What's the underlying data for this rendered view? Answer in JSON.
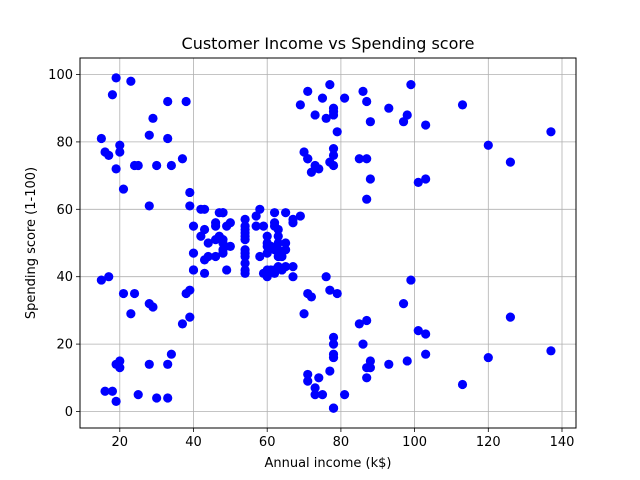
{
  "chart_data": {
    "type": "scatter",
    "title": "Customer Income vs Spending score",
    "xlabel": "Annual income (k$)",
    "ylabel": "Spending score (1-100)",
    "xlim": [
      9.2,
      143.8
    ],
    "ylim": [
      -4.9,
      104.9
    ],
    "xticks": [
      20,
      40,
      60,
      80,
      100,
      120,
      140
    ],
    "yticks": [
      0,
      20,
      40,
      60,
      80,
      100
    ],
    "grid": true,
    "marker_color": "#0000ff",
    "points": [
      [
        15,
        39
      ],
      [
        15,
        81
      ],
      [
        16,
        6
      ],
      [
        16,
        77
      ],
      [
        17,
        40
      ],
      [
        17,
        76
      ],
      [
        18,
        6
      ],
      [
        18,
        94
      ],
      [
        19,
        3
      ],
      [
        19,
        72
      ],
      [
        19,
        14
      ],
      [
        19,
        99
      ],
      [
        20,
        15
      ],
      [
        20,
        77
      ],
      [
        20,
        13
      ],
      [
        20,
        79
      ],
      [
        21,
        35
      ],
      [
        21,
        66
      ],
      [
        23,
        29
      ],
      [
        23,
        98
      ],
      [
        24,
        35
      ],
      [
        24,
        73
      ],
      [
        25,
        5
      ],
      [
        25,
        73
      ],
      [
        28,
        14
      ],
      [
        28,
        82
      ],
      [
        28,
        32
      ],
      [
        28,
        61
      ],
      [
        29,
        31
      ],
      [
        29,
        87
      ],
      [
        30,
        4
      ],
      [
        30,
        73
      ],
      [
        33,
        4
      ],
      [
        33,
        92
      ],
      [
        33,
        14
      ],
      [
        33,
        81
      ],
      [
        34,
        17
      ],
      [
        34,
        73
      ],
      [
        37,
        26
      ],
      [
        37,
        75
      ],
      [
        38,
        35
      ],
      [
        38,
        92
      ],
      [
        39,
        36
      ],
      [
        39,
        61
      ],
      [
        39,
        28
      ],
      [
        39,
        65
      ],
      [
        40,
        55
      ],
      [
        40,
        47
      ],
      [
        40,
        42
      ],
      [
        40,
        42
      ],
      [
        42,
        52
      ],
      [
        42,
        60
      ],
      [
        43,
        54
      ],
      [
        43,
        60
      ],
      [
        43,
        45
      ],
      [
        43,
        41
      ],
      [
        44,
        50
      ],
      [
        44,
        46
      ],
      [
        46,
        51
      ],
      [
        46,
        46
      ],
      [
        46,
        56
      ],
      [
        46,
        55
      ],
      [
        47,
        52
      ],
      [
        47,
        59
      ],
      [
        48,
        51
      ],
      [
        48,
        59
      ],
      [
        48,
        50
      ],
      [
        48,
        48
      ],
      [
        48,
        59
      ],
      [
        48,
        47
      ],
      [
        49,
        55
      ],
      [
        49,
        42
      ],
      [
        50,
        49
      ],
      [
        50,
        56
      ],
      [
        54,
        47
      ],
      [
        54,
        54
      ],
      [
        54,
        53
      ],
      [
        54,
        48
      ],
      [
        54,
        52
      ],
      [
        54,
        42
      ],
      [
        54,
        51
      ],
      [
        54,
        55
      ],
      [
        54,
        41
      ],
      [
        54,
        44
      ],
      [
        54,
        57
      ],
      [
        54,
        46
      ],
      [
        57,
        58
      ],
      [
        57,
        55
      ],
      [
        58,
        60
      ],
      [
        58,
        46
      ],
      [
        59,
        55
      ],
      [
        59,
        41
      ],
      [
        60,
        49
      ],
      [
        60,
        40
      ],
      [
        60,
        42
      ],
      [
        60,
        52
      ],
      [
        60,
        47
      ],
      [
        60,
        50
      ],
      [
        61,
        42
      ],
      [
        61,
        49
      ],
      [
        62,
        41
      ],
      [
        62,
        48
      ],
      [
        62,
        59
      ],
      [
        62,
        55
      ],
      [
        62,
        56
      ],
      [
        62,
        42
      ],
      [
        63,
        50
      ],
      [
        63,
        46
      ],
      [
        63,
        43
      ],
      [
        63,
        48
      ],
      [
        63,
        52
      ],
      [
        63,
        54
      ],
      [
        64,
        42
      ],
      [
        64,
        46
      ],
      [
        65,
        48
      ],
      [
        65,
        50
      ],
      [
        65,
        43
      ],
      [
        65,
        59
      ],
      [
        67,
        43
      ],
      [
        67,
        57
      ],
      [
        67,
        56
      ],
      [
        67,
        40
      ],
      [
        69,
        58
      ],
      [
        69,
        91
      ],
      [
        70,
        29
      ],
      [
        70,
        77
      ],
      [
        71,
        35
      ],
      [
        71,
        95
      ],
      [
        71,
        11
      ],
      [
        71,
        75
      ],
      [
        71,
        9
      ],
      [
        71,
        75
      ],
      [
        72,
        34
      ],
      [
        72,
        71
      ],
      [
        73,
        5
      ],
      [
        73,
        88
      ],
      [
        73,
        7
      ],
      [
        73,
        73
      ],
      [
        74,
        10
      ],
      [
        74,
        72
      ],
      [
        75,
        5
      ],
      [
        75,
        93
      ],
      [
        76,
        40
      ],
      [
        76,
        87
      ],
      [
        77,
        12
      ],
      [
        77,
        97
      ],
      [
        77,
        36
      ],
      [
        77,
        74
      ],
      [
        78,
        22
      ],
      [
        78,
        90
      ],
      [
        78,
        17
      ],
      [
        78,
        88
      ],
      [
        78,
        20
      ],
      [
        78,
        76
      ],
      [
        78,
        16
      ],
      [
        78,
        89
      ],
      [
        78,
        1
      ],
      [
        78,
        78
      ],
      [
        78,
        1
      ],
      [
        78,
        73
      ],
      [
        79,
        35
      ],
      [
        79,
        83
      ],
      [
        81,
        5
      ],
      [
        81,
        93
      ],
      [
        85,
        26
      ],
      [
        85,
        75
      ],
      [
        86,
        20
      ],
      [
        86,
        95
      ],
      [
        87,
        27
      ],
      [
        87,
        63
      ],
      [
        87,
        13
      ],
      [
        87,
        75
      ],
      [
        87,
        10
      ],
      [
        87,
        92
      ],
      [
        88,
        13
      ],
      [
        88,
        86
      ],
      [
        88,
        15
      ],
      [
        88,
        69
      ],
      [
        93,
        14
      ],
      [
        93,
        90
      ],
      [
        97,
        32
      ],
      [
        97,
        86
      ],
      [
        98,
        15
      ],
      [
        98,
        88
      ],
      [
        99,
        39
      ],
      [
        99,
        97
      ],
      [
        101,
        24
      ],
      [
        101,
        68
      ],
      [
        103,
        17
      ],
      [
        103,
        85
      ],
      [
        103,
        23
      ],
      [
        103,
        69
      ],
      [
        113,
        8
      ],
      [
        113,
        91
      ],
      [
        120,
        16
      ],
      [
        120,
        79
      ],
      [
        126,
        28
      ],
      [
        126,
        74
      ],
      [
        137,
        18
      ],
      [
        137,
        83
      ]
    ]
  }
}
